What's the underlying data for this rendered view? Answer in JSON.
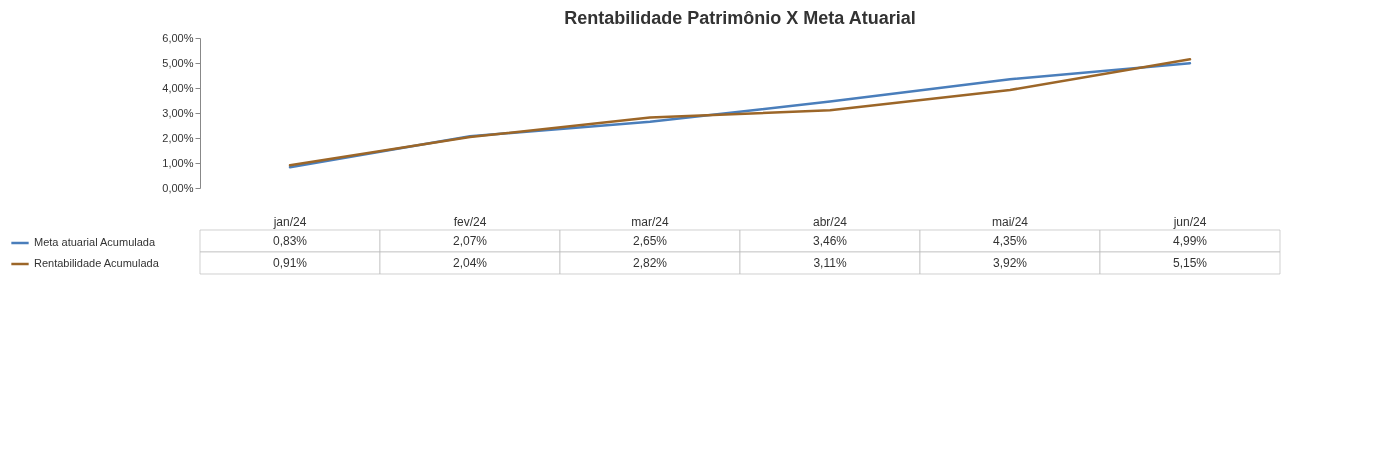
{
  "chart_data": {
    "type": "line",
    "title": "Rentabilidade Patrimônio X Meta Atuarial",
    "categories": [
      "jan/24",
      "fev/24",
      "mar/24",
      "abr/24",
      "mai/24",
      "jun/24"
    ],
    "series": [
      {
        "name": "Meta atuarial Acumulada",
        "color": "#4a7ebb",
        "values": [
          0.83,
          2.07,
          2.65,
          3.46,
          4.35,
          4.99
        ],
        "value_labels": [
          "0,83%",
          "2,07%",
          "2,65%",
          "3,46%",
          "4,35%",
          "4,99%"
        ]
      },
      {
        "name": "Rentabilidade Acumulada",
        "color": "#9c6628",
        "values": [
          0.91,
          2.04,
          2.82,
          3.11,
          3.92,
          5.15
        ],
        "value_labels": [
          "0,91%",
          "2,04%",
          "2,82%",
          "3,11%",
          "3,92%",
          "5,15%"
        ]
      }
    ],
    "ylim": [
      0,
      6
    ],
    "yticks": [
      {
        "value": 0,
        "label": "0,00%"
      },
      {
        "value": 1,
        "label": "1,00%"
      },
      {
        "value": 2,
        "label": "2,00%"
      },
      {
        "value": 3,
        "label": "3,00%"
      },
      {
        "value": 4,
        "label": "4,00%"
      },
      {
        "value": 5,
        "label": "5,00%"
      },
      {
        "value": 6,
        "label": "6,00%"
      }
    ],
    "legend": "bottom left",
    "grid": false,
    "marker": "none",
    "line_style": "solid"
  }
}
